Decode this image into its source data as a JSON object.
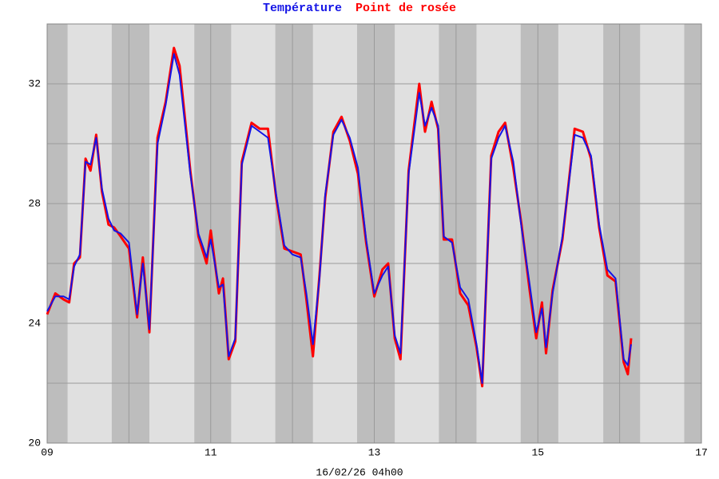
{
  "chart_data": {
    "type": "line",
    "series": [
      {
        "name": "Température",
        "color": "#1414e6",
        "values": [
          24.4,
          24.9,
          24.9,
          24.8,
          25.9,
          26.3,
          29.4,
          29.3,
          30.2,
          28.5,
          27.5,
          27.1,
          27.0,
          26.7,
          24.3,
          26.0,
          23.8,
          30.0,
          31.3,
          33.0,
          32.3,
          29.0,
          27.0,
          26.2,
          26.8,
          25.2,
          25.3,
          22.9,
          23.5,
          29.3,
          30.6,
          30.4,
          30.2,
          28.3,
          26.6,
          26.3,
          26.2,
          25.0,
          23.3,
          25.5,
          28.3,
          30.3,
          30.8,
          30.2,
          29.2,
          26.8,
          25.0,
          25.6,
          25.9,
          23.6,
          23.0,
          29.0,
          31.7,
          30.6,
          31.2,
          30.6,
          26.9,
          26.7,
          25.2,
          24.8,
          23.3,
          22.0,
          29.5,
          30.2,
          30.6,
          29.4,
          27.2,
          25.3,
          23.7,
          24.5,
          23.2,
          25.0,
          26.9,
          30.3,
          30.2,
          29.6,
          27.3,
          25.8,
          25.5,
          22.8,
          22.6,
          23.3
        ]
      },
      {
        "name": "Point de rosée",
        "color": "#ff0000",
        "values": [
          24.3,
          25.0,
          24.8,
          24.7,
          26.0,
          26.2,
          29.5,
          29.1,
          30.3,
          28.4,
          27.3,
          27.2,
          26.9,
          26.5,
          24.2,
          26.2,
          23.7,
          30.2,
          31.4,
          33.2,
          32.6,
          29.1,
          26.9,
          26.0,
          27.1,
          25.0,
          25.5,
          22.8,
          23.4,
          29.4,
          30.7,
          30.5,
          30.5,
          28.2,
          26.5,
          26.4,
          26.3,
          24.8,
          22.9,
          25.6,
          28.2,
          30.4,
          30.9,
          30.1,
          29.0,
          26.7,
          24.9,
          25.8,
          26.0,
          23.5,
          22.8,
          29.1,
          32.0,
          30.4,
          31.4,
          30.5,
          26.8,
          26.8,
          25.0,
          24.6,
          23.2,
          21.9,
          29.6,
          30.4,
          30.7,
          29.2,
          27.3,
          25.1,
          23.5,
          24.7,
          23.0,
          25.1,
          26.8,
          30.5,
          30.4,
          29.5,
          27.2,
          25.6,
          25.4,
          22.7,
          22.3,
          23.5
        ]
      }
    ],
    "x": [
      9.0,
      9.1,
      9.2,
      9.27,
      9.33,
      9.4,
      9.47,
      9.53,
      9.6,
      9.67,
      9.75,
      9.82,
      9.9,
      10.0,
      10.1,
      10.17,
      10.25,
      10.35,
      10.45,
      10.55,
      10.62,
      10.75,
      10.85,
      10.95,
      11.0,
      11.1,
      11.15,
      11.22,
      11.3,
      11.38,
      11.5,
      11.6,
      11.7,
      11.8,
      11.9,
      12.0,
      12.1,
      12.17,
      12.25,
      12.33,
      12.4,
      12.5,
      12.6,
      12.7,
      12.8,
      12.9,
      13.0,
      13.1,
      13.17,
      13.25,
      13.32,
      13.42,
      13.55,
      13.62,
      13.7,
      13.78,
      13.85,
      13.95,
      14.05,
      14.15,
      14.25,
      14.32,
      14.43,
      14.52,
      14.6,
      14.7,
      14.8,
      14.9,
      14.98,
      15.05,
      15.1,
      15.18,
      15.3,
      15.45,
      15.55,
      15.65,
      15.75,
      15.85,
      15.95,
      16.05,
      16.1,
      16.14
    ],
    "xlim": [
      9,
      17
    ],
    "xticks": [
      {
        "value": 9,
        "label": "09"
      },
      11,
      13,
      15,
      17
    ],
    "xgrid": [
      10,
      12,
      14,
      16
    ],
    "ylim": [
      20,
      34
    ],
    "yticks": [
      20,
      24,
      28,
      32
    ],
    "ygrid": [
      22,
      26,
      30,
      34
    ],
    "shaded_bands": [
      [
        9,
        9.25
      ],
      [
        9.79,
        10.25
      ],
      [
        10.8,
        11.25
      ],
      [
        11.79,
        12.25
      ],
      [
        12.79,
        13.25
      ],
      [
        13.79,
        14.25
      ],
      [
        14.79,
        15.25
      ],
      [
        15.8,
        16.25
      ],
      [
        16.79,
        17
      ]
    ],
    "xlabel": "16/02/26 04h00",
    "grid": true
  }
}
